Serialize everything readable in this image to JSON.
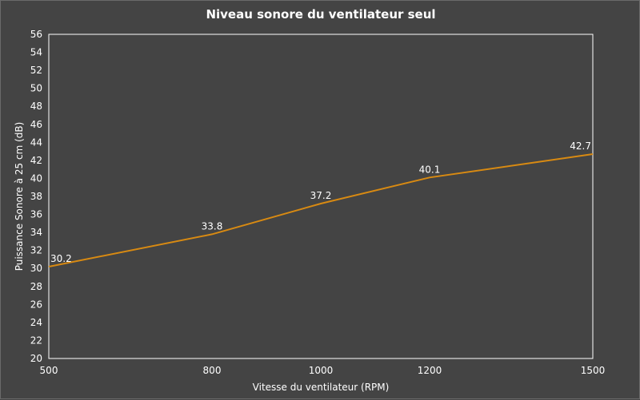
{
  "colors": {
    "background": "#444444",
    "plot_border": "#ffffff",
    "series_line": "#d88a12",
    "text": "#ffffff"
  },
  "chart_data": {
    "type": "line",
    "title": "Niveau sonore du ventilateur seul",
    "xlabel": "Vitesse du ventilateur (RPM)",
    "ylabel": "Puissance Sonore à 25 cm (dB)",
    "xlim": [
      500,
      1500
    ],
    "ylim": [
      20,
      56
    ],
    "xticks": [
      500,
      800,
      1000,
      1200,
      1500
    ],
    "yticks": [
      20,
      22,
      24,
      26,
      28,
      30,
      32,
      34,
      36,
      38,
      40,
      42,
      44,
      46,
      48,
      50,
      52,
      54,
      56
    ],
    "grid": false,
    "series": [
      {
        "x": [
          500,
          800,
          1000,
          1200,
          1500
        ],
        "y": [
          30.2,
          33.8,
          37.2,
          40.1,
          42.7
        ],
        "labels": [
          "30.2",
          "33.8",
          "37.2",
          "40.1",
          "42.7"
        ]
      }
    ]
  }
}
